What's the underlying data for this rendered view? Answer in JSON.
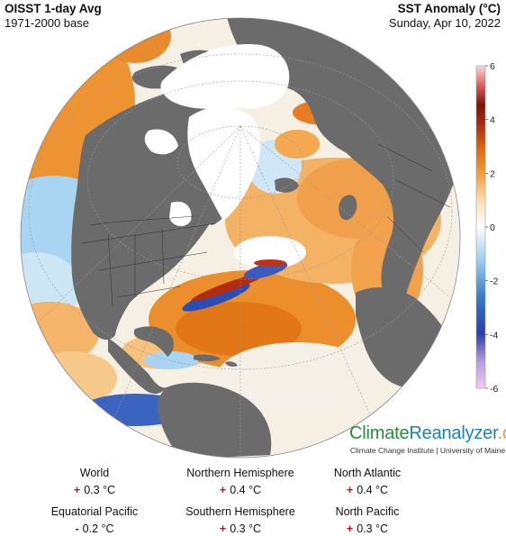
{
  "header": {
    "left_title": "OISST 1-day Avg",
    "left_subtitle": "1971-2000 base",
    "right_title": "SST Anomaly (°C)",
    "right_subtitle": "Sunday, Apr 10, 2022"
  },
  "colorbar": {
    "min": -6,
    "max": 6,
    "tick_labels": [
      "6",
      "4",
      "2",
      "0",
      "-2",
      "-4",
      "-6"
    ],
    "colors": [
      "#f5c8f0",
      "#8a8ad0",
      "#2a4ab4",
      "#6aaee0",
      "#cfe8f8",
      "#ffffff",
      "#fde8c8",
      "#f7b25a",
      "#e8760a",
      "#b83a12",
      "#8b1a10",
      "#e05a5a",
      "#f8d8d8"
    ]
  },
  "map_colors": {
    "land": "#6b6b6b",
    "ice": "#ffffff",
    "ocean_warm": "#f0973a",
    "ocean_light_warm": "#f7c27e",
    "ocean_cool": "#a8d2f0",
    "ocean_neutral": "#f4f4f0",
    "ocean_hot": "#b8340e",
    "ocean_cold": "#2a55b8"
  },
  "brand": {
    "part1": "Climate",
    "part2": "Reanalyzer",
    "part3": ".org",
    "subtitle": "Climate Change Institute | University of Maine"
  },
  "stats": [
    {
      "label": "World",
      "sign": "+",
      "value": "0.3 °C"
    },
    {
      "label": "Northern Hemisphere",
      "sign": "+",
      "value": "0.4 °C"
    },
    {
      "label": "North Atlantic",
      "sign": "+",
      "value": "0.4 °C"
    },
    {
      "label": "Equatorial Pacific",
      "sign": "-",
      "value": "0.2 °C"
    },
    {
      "label": "Southern Hemisphere",
      "sign": "+",
      "value": "0.3 °C"
    },
    {
      "label": "North Pacific",
      "sign": "+",
      "value": "0.3 °C"
    }
  ]
}
